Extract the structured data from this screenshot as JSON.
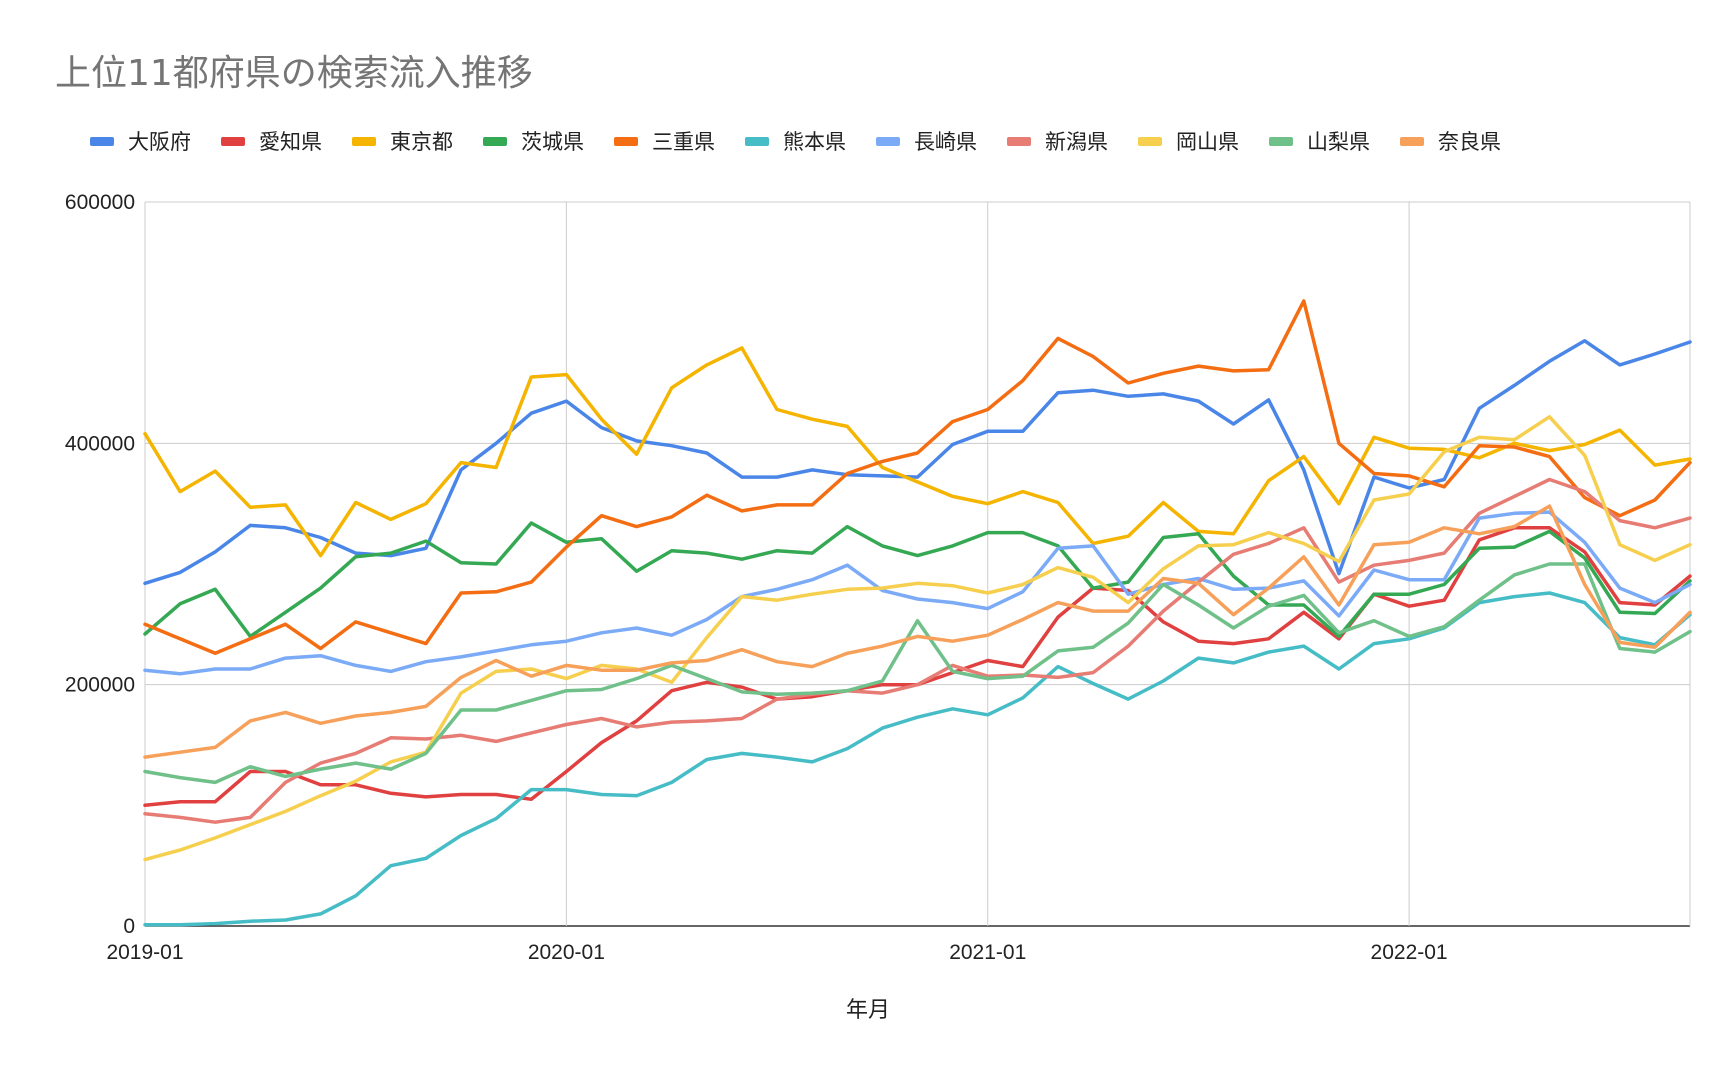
{
  "chart_data": {
    "type": "line",
    "title": "上位11都府県の検索流入推移",
    "xlabel": "年月",
    "ylabel": "",
    "ylim": [
      0,
      600000
    ],
    "y_ticks": [
      "0",
      "200000",
      "400000",
      "600000"
    ],
    "x_ticks": [
      "2019-01",
      "2020-01",
      "2021-01",
      "2022-01"
    ],
    "x_tick_index": [
      0,
      12,
      24,
      36
    ],
    "grid": true,
    "legend_position": "top",
    "months": [
      "2019-01",
      "2019-02",
      "2019-03",
      "2019-04",
      "2019-05",
      "2019-06",
      "2019-07",
      "2019-08",
      "2019-09",
      "2019-10",
      "2019-11",
      "2019-12",
      "2020-01",
      "2020-02",
      "2020-03",
      "2020-04",
      "2020-05",
      "2020-06",
      "2020-07",
      "2020-08",
      "2020-09",
      "2020-10",
      "2020-11",
      "2020-12",
      "2021-01",
      "2021-02",
      "2021-03",
      "2021-04",
      "2021-05",
      "2021-06",
      "2021-07",
      "2021-08",
      "2021-09",
      "2021-10",
      "2021-11",
      "2021-12",
      "2022-01",
      "2022-02",
      "2022-03",
      "2022-04",
      "2022-05",
      "2022-06",
      "2022-07",
      "2022-08",
      "2022-09"
    ],
    "series": [
      {
        "name": "大阪府",
        "color": "#4a86e8",
        "values": [
          284000,
          293000,
          310000,
          332000,
          330000,
          322000,
          309000,
          307000,
          313000,
          378000,
          400000,
          425000,
          435000,
          413000,
          402000,
          398000,
          392000,
          372000,
          372000,
          378000,
          374000,
          373000,
          372000,
          399000,
          410000,
          410000,
          442000,
          444000,
          439000,
          441000,
          435000,
          416000,
          436000,
          378000,
          292000,
          372000,
          363000,
          370000,
          429000,
          448000,
          468000,
          485000,
          465000,
          474000,
          484000
        ]
      },
      {
        "name": "愛知県",
        "color": "#e04040",
        "values": [
          100000,
          103000,
          103000,
          128000,
          128000,
          117000,
          117000,
          110000,
          107000,
          109000,
          109000,
          105000,
          128000,
          152000,
          170000,
          195000,
          202000,
          198000,
          188000,
          190000,
          195000,
          200000,
          200000,
          210000,
          220000,
          215000,
          256000,
          280000,
          278000,
          252000,
          236000,
          234000,
          238000,
          260000,
          238000,
          275000,
          265000,
          270000,
          320000,
          330000,
          330000,
          310000,
          268000,
          266000,
          290000
        ]
      },
      {
        "name": "東京都",
        "color": "#f4b400",
        "values": [
          408000,
          360000,
          377000,
          347000,
          349000,
          307000,
          351000,
          337000,
          350000,
          384000,
          380000,
          455000,
          457000,
          420000,
          391000,
          446000,
          465000,
          479000,
          428000,
          420000,
          414000,
          380000,
          368000,
          356000,
          350000,
          360000,
          351000,
          317000,
          323000,
          351000,
          327000,
          325000,
          369000,
          389000,
          350000,
          405000,
          396000,
          395000,
          388000,
          400000,
          394000,
          399000,
          411000,
          382000,
          387000
        ]
      },
      {
        "name": "茨城県",
        "color": "#34a853",
        "values": [
          242000,
          267000,
          279000,
          240000,
          260000,
          280000,
          306000,
          309000,
          319000,
          301000,
          300000,
          334000,
          318000,
          321000,
          294000,
          311000,
          309000,
          304000,
          311000,
          309000,
          331000,
          315000,
          307000,
          315000,
          326000,
          326000,
          315000,
          280000,
          285000,
          322000,
          325000,
          290000,
          266000,
          266000,
          240000,
          275000,
          275000,
          283000,
          313000,
          314000,
          327000,
          305000,
          260000,
          259000,
          286000
        ]
      },
      {
        "name": "三重県",
        "color": "#f46d12",
        "values": [
          250000,
          238000,
          226000,
          238000,
          250000,
          230000,
          252000,
          243000,
          234000,
          276000,
          277000,
          285000,
          314000,
          340000,
          331000,
          339000,
          357000,
          344000,
          349000,
          349000,
          375000,
          385000,
          392000,
          418000,
          428000,
          452000,
          487000,
          472000,
          450000,
          458000,
          464000,
          460000,
          461000,
          518000,
          400000,
          375000,
          373000,
          364000,
          398000,
          397000,
          389000,
          355000,
          340000,
          353000,
          384000
        ]
      },
      {
        "name": "熊本県",
        "color": "#46bdc6",
        "values": [
          1000,
          1000,
          2000,
          4000,
          5000,
          10000,
          25000,
          50000,
          56000,
          75000,
          89000,
          113000,
          113000,
          109000,
          108000,
          119000,
          138000,
          143000,
          140000,
          136000,
          147000,
          164000,
          173000,
          180000,
          175000,
          189000,
          215000,
          201000,
          188000,
          203000,
          222000,
          218000,
          227000,
          232000,
          213000,
          234000,
          238000,
          247000,
          268000,
          273000,
          276000,
          268000,
          239000,
          233000,
          258000
        ]
      },
      {
        "name": "長崎県",
        "color": "#7baaf7",
        "values": [
          212000,
          209000,
          213000,
          213000,
          222000,
          224000,
          216000,
          211000,
          219000,
          223000,
          228000,
          233000,
          236000,
          243000,
          247000,
          241000,
          254000,
          273000,
          279000,
          287000,
          299000,
          278000,
          271000,
          268000,
          263000,
          277000,
          313000,
          315000,
          275000,
          283000,
          288000,
          279000,
          280000,
          286000,
          257000,
          295000,
          287000,
          287000,
          338000,
          342000,
          343000,
          318000,
          280000,
          268000,
          283000
        ]
      },
      {
        "name": "新潟県",
        "color": "#e67c73",
        "values": [
          93000,
          90000,
          86000,
          90000,
          119000,
          135000,
          143000,
          156000,
          155000,
          158000,
          153000,
          160000,
          167000,
          172000,
          165000,
          169000,
          170000,
          172000,
          188000,
          192000,
          195000,
          193000,
          200000,
          216000,
          207000,
          208000,
          206000,
          210000,
          232000,
          261000,
          285000,
          308000,
          317000,
          330000,
          285000,
          299000,
          303000,
          309000,
          342000,
          356000,
          370000,
          360000,
          336000,
          330000,
          338000
        ]
      },
      {
        "name": "岡山県",
        "color": "#f6cf4e",
        "values": [
          55000,
          63000,
          73000,
          84000,
          95000,
          108000,
          120000,
          136000,
          144000,
          193000,
          211000,
          213000,
          205000,
          216000,
          213000,
          202000,
          239000,
          273000,
          270000,
          275000,
          279000,
          280000,
          284000,
          282000,
          276000,
          283000,
          297000,
          289000,
          268000,
          296000,
          315000,
          316000,
          326000,
          317000,
          302000,
          353000,
          358000,
          393000,
          405000,
          403000,
          422000,
          390000,
          316000,
          303000,
          316000
        ]
      },
      {
        "name": "山梨県",
        "color": "#6fc089",
        "values": [
          128000,
          123000,
          119000,
          132000,
          124000,
          130000,
          135000,
          130000,
          143000,
          179000,
          179000,
          187000,
          195000,
          196000,
          205000,
          216000,
          205000,
          194000,
          192000,
          193000,
          195000,
          203000,
          253000,
          211000,
          205000,
          207000,
          228000,
          231000,
          251000,
          283000,
          266000,
          247000,
          265000,
          274000,
          243000,
          253000,
          240000,
          248000,
          270000,
          291000,
          300000,
          300000,
          230000,
          227000,
          244000
        ]
      },
      {
        "name": "奈良県",
        "color": "#f6a05a",
        "values": [
          140000,
          144000,
          148000,
          170000,
          177000,
          168000,
          174000,
          177000,
          182000,
          206000,
          220000,
          207000,
          216000,
          212000,
          212000,
          218000,
          220000,
          229000,
          219000,
          215000,
          226000,
          232000,
          240000,
          236000,
          241000,
          254000,
          268000,
          261000,
          261000,
          288000,
          284000,
          258000,
          280000,
          306000,
          266000,
          316000,
          318000,
          330000,
          325000,
          331000,
          348000,
          283000,
          235000,
          231000,
          260000
        ]
      }
    ]
  }
}
